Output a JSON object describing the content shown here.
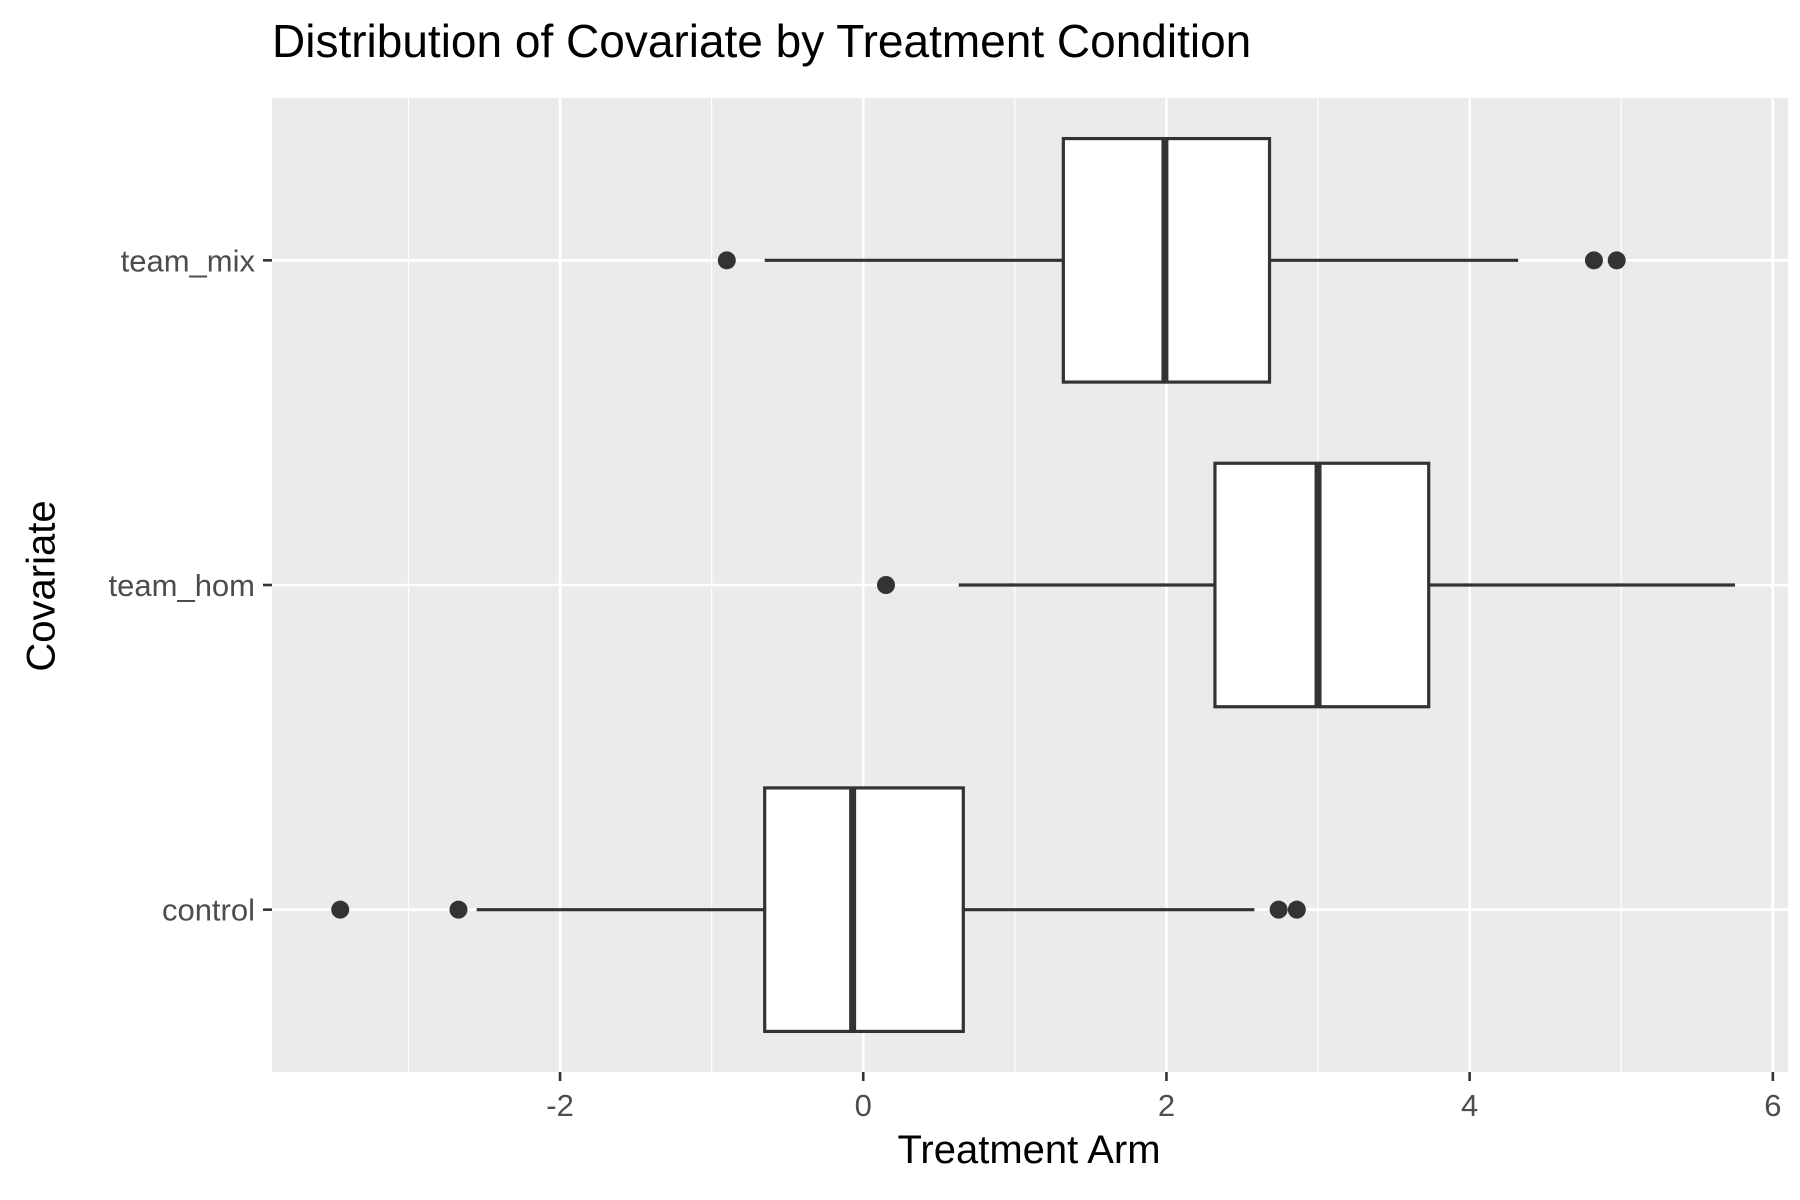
{
  "chart_data": {
    "type": "boxplot",
    "title": "Distribution of Covariate by Treatment Condition",
    "xlabel": "Treatment Arm",
    "ylabel": "Covariate",
    "orientation": "horizontal",
    "xlim": [
      -3.9,
      6.1
    ],
    "x_ticks": [
      -2,
      0,
      2,
      4,
      6
    ],
    "x_tick_labels": [
      "-2",
      "0",
      "2",
      "4",
      "6"
    ],
    "grid": true,
    "legend": "none",
    "colors": {
      "panel_background": "#ebebeb",
      "grid": "#ffffff",
      "box_fill": "#ffffff",
      "box_outline": "#333333",
      "axis_text": "#4d4d4d"
    },
    "categories": [
      "control",
      "team_hom",
      "team_mix"
    ],
    "boxes": [
      {
        "category": "control",
        "whisker_low": -2.55,
        "q1": -0.65,
        "median": -0.07,
        "q3": 0.66,
        "whisker_high": 2.58,
        "outliers": [
          -3.45,
          -2.67,
          2.74,
          2.86
        ]
      },
      {
        "category": "team_hom",
        "whisker_low": 0.63,
        "q1": 2.32,
        "median": 3.0,
        "q3": 3.73,
        "whisker_high": 5.75,
        "outliers": [
          0.15
        ]
      },
      {
        "category": "team_mix",
        "whisker_low": -0.65,
        "q1": 1.32,
        "median": 1.99,
        "q3": 2.68,
        "whisker_high": 4.32,
        "outliers": [
          -0.9,
          4.82,
          4.97
        ]
      }
    ]
  }
}
